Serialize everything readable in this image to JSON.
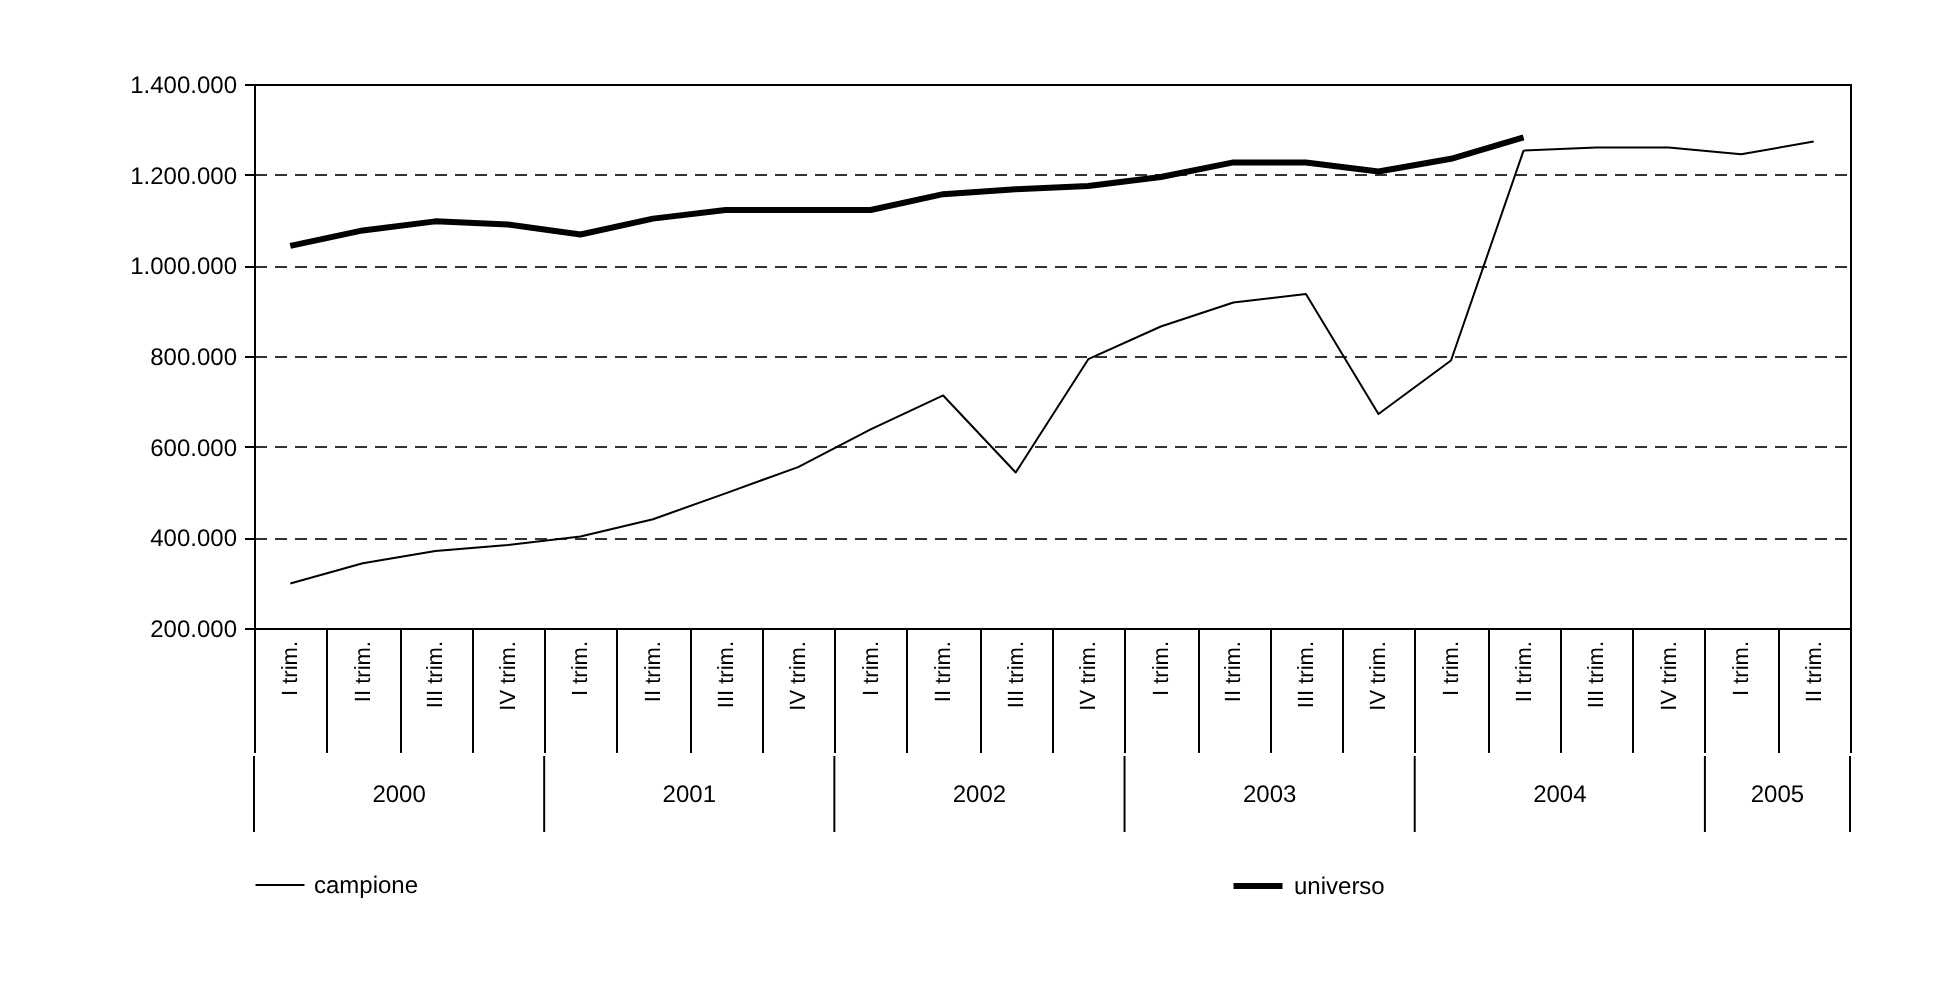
{
  "chart_data": {
    "type": "line",
    "categories": [
      "I trim.",
      "II trim.",
      "III trim.",
      "IV trim.",
      "I trim.",
      "II trim.",
      "III trim.",
      "IV trim.",
      "I trim.",
      "II trim.",
      "III trim.",
      "IV trim.",
      "I trim.",
      "II trim.",
      "III trim.",
      "IV trim.",
      "I trim.",
      "II trim.",
      "III trim.",
      "IV trim.",
      "I trim.",
      "II trim."
    ],
    "annotations": [
      "2000",
      "2001",
      "2002",
      "2003",
      "2004",
      "2005"
    ],
    "series": [
      {
        "name": "campione",
        "color": "#000000",
        "values": [
          298000,
          343000,
          370000,
          383000,
          402000,
          440000,
          497000,
          555000,
          638000,
          713000,
          543000,
          793000,
          865000,
          918000,
          937000,
          672000,
          790000,
          1253000,
          1260000,
          1260000,
          1245000,
          1273000
        ]
      },
      {
        "name": "universo",
        "color": "#000000",
        "values": [
          1043000,
          1077000,
          1097000,
          1090000,
          1068000,
          1103000,
          1122000,
          1122000,
          1122000,
          1157000,
          1168000,
          1175000,
          1195000,
          1227000,
          1227000,
          1207000,
          1235000,
          1282000,
          null,
          null,
          null,
          null
        ]
      }
    ],
    "ylim": [
      200000,
      1400000
    ],
    "yticks": [
      {
        "value": 200000,
        "label": "200.000"
      },
      {
        "value": 400000,
        "label": "400.000"
      },
      {
        "value": 600000,
        "label": "600.000"
      },
      {
        "value": 800000,
        "label": "800.000"
      },
      {
        "value": 1000000,
        "label": "1.000.000"
      },
      {
        "value": 1200000,
        "label": "1.200.000"
      },
      {
        "value": 1400000,
        "label": "1.400.000"
      }
    ],
    "grid": "y",
    "legend": "bottom",
    "marker": "none",
    "line_style": "solid"
  }
}
